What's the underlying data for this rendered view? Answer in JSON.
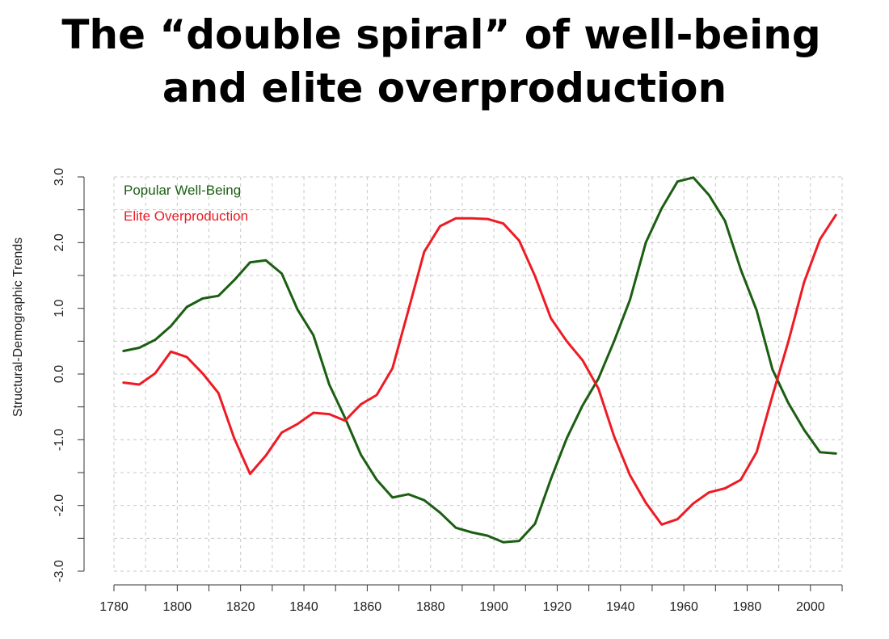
{
  "title": {
    "line1": "The “double spiral” of well-being",
    "line2": "and elite overproduction"
  },
  "chart_data": {
    "type": "line",
    "title": "The “double spiral” of well-being and elite overproduction",
    "xlabel": "",
    "ylabel": "Structural-Demographic Trends",
    "xlim": [
      1780,
      2010
    ],
    "ylim": [
      -3.0,
      3.0
    ],
    "xticks": [
      1780,
      1800,
      1820,
      1840,
      1860,
      1880,
      1900,
      1920,
      1940,
      1960,
      1980,
      2000
    ],
    "yticks": [
      -3.0,
      -2.0,
      -1.0,
      0.0,
      1.0,
      2.0,
      3.0
    ],
    "ytick_labels": [
      "-3.0",
      "-2.0",
      "-1.0",
      "0.0",
      "1.0",
      "2.0",
      "3.0"
    ],
    "grid": true,
    "legend_position": "top-left",
    "series": [
      {
        "name": "Popular Well-Being",
        "color": "#1b5e12",
        "x": [
          1783,
          1788,
          1793,
          1798,
          1803,
          1808,
          1813,
          1818,
          1823,
          1828,
          1833,
          1838,
          1843,
          1848,
          1853,
          1858,
          1863,
          1868,
          1873,
          1878,
          1883,
          1888,
          1893,
          1898,
          1903,
          1908,
          1913,
          1918,
          1923,
          1928,
          1933,
          1938,
          1943,
          1948,
          1953,
          1958,
          1963,
          1968,
          1973,
          1978,
          1983,
          1988,
          1993,
          1998,
          2003,
          2008
        ],
        "values": [
          0.35,
          0.4,
          0.52,
          0.73,
          1.02,
          1.15,
          1.19,
          1.43,
          1.7,
          1.73,
          1.53,
          0.98,
          0.59,
          -0.16,
          -0.67,
          -1.23,
          -1.61,
          -1.88,
          -1.83,
          -1.92,
          -2.11,
          -2.34,
          -2.41,
          -2.46,
          -2.56,
          -2.54,
          -2.28,
          -1.6,
          -0.98,
          -0.48,
          -0.07,
          0.5,
          1.13,
          2.0,
          2.52,
          2.93,
          2.99,
          2.72,
          2.33,
          1.59,
          0.97,
          0.07,
          -0.44,
          -0.85,
          -1.19,
          -1.21
        ]
      },
      {
        "name": "Elite Overproduction",
        "color": "#ee1b24",
        "x": [
          1783,
          1788,
          1793,
          1798,
          1803,
          1808,
          1813,
          1818,
          1823,
          1828,
          1833,
          1838,
          1843,
          1848,
          1853,
          1858,
          1863,
          1868,
          1873,
          1878,
          1883,
          1888,
          1893,
          1898,
          1903,
          1908,
          1913,
          1918,
          1923,
          1928,
          1933,
          1938,
          1943,
          1948,
          1953,
          1958,
          1963,
          1968,
          1973,
          1978,
          1983,
          1988,
          1993,
          1998,
          2003,
          2008
        ],
        "values": [
          -0.13,
          -0.16,
          0.01,
          0.34,
          0.26,
          0.01,
          -0.29,
          -0.98,
          -1.52,
          -1.24,
          -0.89,
          -0.76,
          -0.59,
          -0.61,
          -0.71,
          -0.46,
          -0.32,
          0.09,
          0.97,
          1.86,
          2.25,
          2.37,
          2.37,
          2.36,
          2.29,
          2.03,
          1.49,
          0.85,
          0.5,
          0.21,
          -0.22,
          -0.95,
          -1.54,
          -1.96,
          -2.29,
          -2.21,
          -1.97,
          -1.8,
          -1.74,
          -1.61,
          -1.19,
          -0.33,
          0.49,
          1.4,
          2.05,
          2.42
        ]
      }
    ]
  }
}
